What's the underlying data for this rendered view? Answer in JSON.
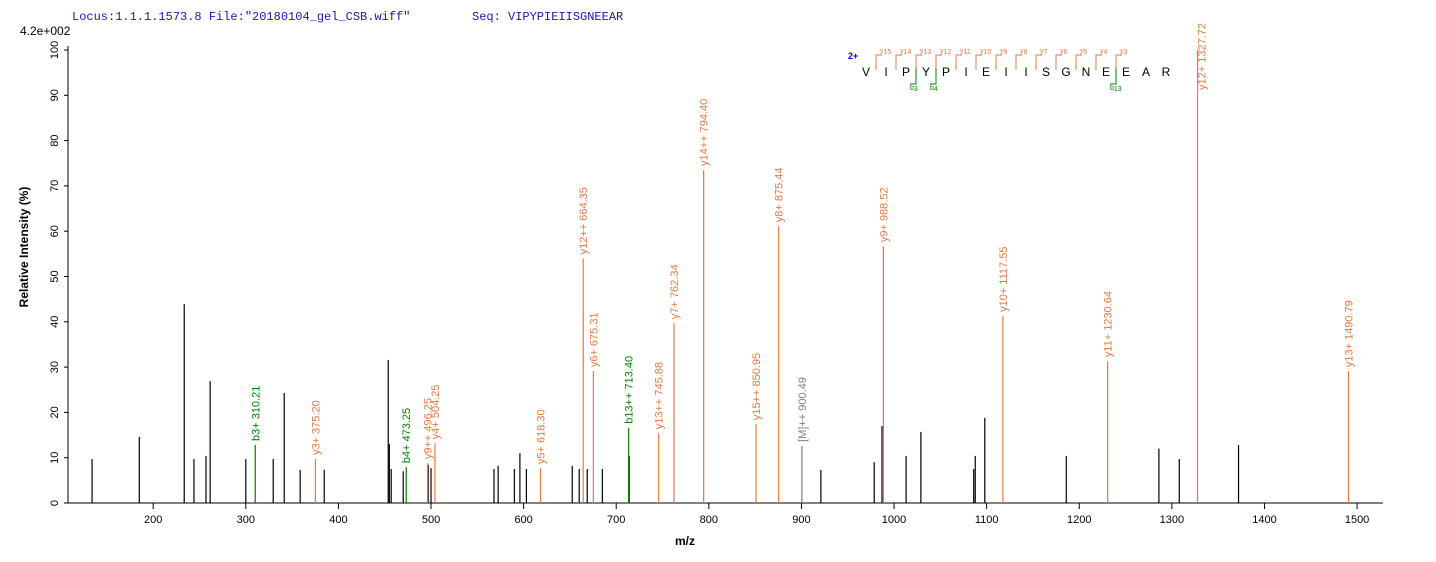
{
  "chart_data": {
    "type": "spectrum",
    "header": {
      "locus": "Locus:1.1.1.1573.8 File:\"20180104_gel_CSB.wiff\"",
      "seq": "Seq: VIPYPIEIISGNEEAR"
    },
    "scale_label": "4.2e+002",
    "ylabel": "Relative  Intensity (%)",
    "xlabel": "m/z",
    "xlim": [
      108,
      1528
    ],
    "ylim": [
      0,
      100
    ],
    "xticks": [
      200,
      300,
      400,
      500,
      600,
      700,
      800,
      900,
      1000,
      1100,
      1200,
      1300,
      1400,
      1500
    ],
    "yticks": [
      0,
      10,
      20,
      30,
      40,
      50,
      60,
      70,
      80,
      90,
      100
    ],
    "unlabeled": {
      "color": "#000000",
      "x": [
        134,
        185,
        233.5,
        244,
        257,
        261.5,
        300,
        329.6,
        341.5,
        358.7,
        384.7,
        453.8,
        455,
        457,
        470,
        497,
        500,
        568,
        572.5,
        590,
        596,
        603,
        652.5,
        660,
        668.7,
        685,
        714,
        921,
        978.6,
        987,
        1013,
        1029,
        1086,
        1087.7,
        1098,
        1186,
        1286,
        1308,
        1372
      ],
      "values": [
        9.7,
        14.6,
        43.9,
        9.7,
        10.4,
        26.9,
        9.7,
        9.7,
        24.3,
        7.3,
        7.3,
        31.6,
        13,
        7.5,
        7,
        8.4,
        7.7,
        7.5,
        8.2,
        7.5,
        11,
        7.5,
        8.2,
        7.5,
        7.5,
        7.5,
        10.4,
        7.3,
        9,
        17,
        10.4,
        15.7,
        7.5,
        10.4,
        18.8,
        10.4,
        12,
        9.7,
        12.8
      ]
    },
    "annotated": {
      "x": [
        310.21,
        375.2,
        473.25,
        496.25,
        504.25,
        618.3,
        664.35,
        675.31,
        713.4,
        745.88,
        762.34,
        794.4,
        850.95,
        875.44,
        900.49,
        988.52,
        1117.55,
        1230.64,
        1327.72,
        1490.79
      ],
      "values": [
        12.8,
        9.7,
        7.9,
        8.8,
        13.2,
        7.7,
        54,
        29.1,
        16.6,
        15.4,
        39.7,
        73.5,
        17.4,
        61.1,
        12.6,
        56.7,
        41.3,
        31.3,
        100,
        29.1
      ],
      "labels": [
        "b3+ 310.21",
        "y3+ 375.20",
        "b4+ 473.25",
        "y9++ 496.25",
        "y4+ 504.25",
        "y5+ 618.30",
        "y12++ 664.35",
        "y6+ 675.31",
        "b13++ 713.40",
        "y13++ 745.88",
        "y7+ 762.34",
        "y14++ 794.40",
        "y15++ 850.95",
        "y8+ 875.44",
        "[M]++ 900.49",
        "y9+ 988.52",
        "y10+ 1117.55",
        "y11+ 1230.64",
        "y12+ 1327.72",
        "y13+ 1490.79"
      ],
      "colors": [
        "#008000",
        "#e07b45",
        "#008000",
        "#e07b45",
        "#e07b45",
        "#e07b45",
        "#e07b45",
        "#e07b45",
        "#008000",
        "#e07b45",
        "#e07b45",
        "#e07b45",
        "#e07b45",
        "#e07b45",
        "#808080",
        "#e07b45",
        "#e07b45",
        "#e07b45",
        "#e07b45",
        "#e07b45"
      ]
    },
    "sequence_annotation": {
      "charge": "2+",
      "residues": [
        "V",
        "I",
        "P",
        "Y",
        "P",
        "I",
        "E",
        "I",
        "I",
        "S",
        "G",
        "N",
        "E",
        "E",
        "A",
        "R"
      ],
      "y_ions": [
        15,
        14,
        13,
        12,
        11,
        10,
        9,
        8,
        7,
        6,
        5,
        4,
        3
      ],
      "b_ions": [
        3,
        4,
        13
      ]
    }
  }
}
